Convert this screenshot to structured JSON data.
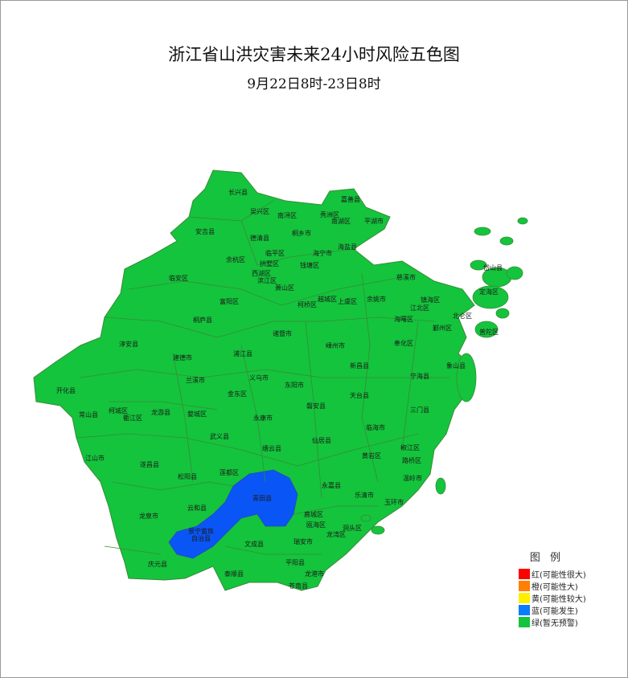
{
  "title": "浙江省山洪灾害未来24小时风险五色图",
  "subtitle": "9月22日8时-23日8时",
  "colors": {
    "green": "#14c43c",
    "blue": "#0a55f5",
    "border": "#3a8a3a"
  },
  "legend": {
    "title": "图 例",
    "items": [
      {
        "label": "红(可能性很大)",
        "color": "#ff0000"
      },
      {
        "label": "橙(可能性大)",
        "color": "#ff8000"
      },
      {
        "label": "黄(可能性较大)",
        "color": "#ffee00"
      },
      {
        "label": "蓝(可能发生)",
        "color": "#0a7cff"
      },
      {
        "label": "绿(暂无预警)",
        "color": "#14c43c"
      }
    ]
  },
  "regions": [
    {
      "name": "长兴县",
      "level": "绿"
    },
    {
      "name": "吴兴区",
      "level": "绿"
    },
    {
      "name": "南浔区",
      "level": "绿"
    },
    {
      "name": "嘉善县",
      "level": "绿"
    },
    {
      "name": "秀洲区",
      "level": "绿"
    },
    {
      "name": "南湖区",
      "level": "绿"
    },
    {
      "name": "平湖市",
      "level": "绿"
    },
    {
      "name": "安吉县",
      "level": "绿"
    },
    {
      "name": "德清县",
      "level": "绿"
    },
    {
      "name": "桐乡市",
      "level": "绿"
    },
    {
      "name": "海盐县",
      "level": "绿"
    },
    {
      "name": "临平区",
      "level": "绿"
    },
    {
      "name": "海宁市",
      "level": "绿"
    },
    {
      "name": "余杭区",
      "level": "绿"
    },
    {
      "name": "拱墅区",
      "level": "绿"
    },
    {
      "name": "钱塘区",
      "level": "绿"
    },
    {
      "name": "西湖区",
      "level": "绿"
    },
    {
      "name": "滨江区",
      "level": "绿"
    },
    {
      "name": "萧山区",
      "level": "绿"
    },
    {
      "name": "临安区",
      "level": "绿"
    },
    {
      "name": "富阳区",
      "level": "绿"
    },
    {
      "name": "柯桥区",
      "level": "绿"
    },
    {
      "name": "越城区",
      "level": "绿"
    },
    {
      "name": "上虞区",
      "level": "绿"
    },
    {
      "name": "余姚市",
      "level": "绿"
    },
    {
      "name": "慈溪市",
      "level": "绿"
    },
    {
      "name": "镇海区",
      "level": "绿"
    },
    {
      "name": "江北区",
      "level": "绿"
    },
    {
      "name": "海曙区",
      "level": "绿"
    },
    {
      "name": "北仑区",
      "level": "绿"
    },
    {
      "name": "鄞州区",
      "level": "绿"
    },
    {
      "name": "定海区",
      "level": "绿"
    },
    {
      "name": "岱山县",
      "level": "绿"
    },
    {
      "name": "普陀区",
      "level": "绿"
    },
    {
      "name": "桐庐县",
      "level": "绿"
    },
    {
      "name": "淳安县",
      "level": "绿"
    },
    {
      "name": "建德市",
      "level": "绿"
    },
    {
      "name": "浦江县",
      "level": "绿"
    },
    {
      "name": "诸暨市",
      "level": "绿"
    },
    {
      "name": "嵊州市",
      "level": "绿"
    },
    {
      "name": "奉化区",
      "level": "绿"
    },
    {
      "name": "新昌县",
      "level": "绿"
    },
    {
      "name": "象山县",
      "level": "绿"
    },
    {
      "name": "宁海县",
      "level": "绿"
    },
    {
      "name": "天台县",
      "level": "绿"
    },
    {
      "name": "三门县",
      "level": "绿"
    },
    {
      "name": "开化县",
      "level": "绿"
    },
    {
      "name": "兰溪市",
      "level": "绿"
    },
    {
      "name": "义乌市",
      "level": "绿"
    },
    {
      "name": "东阳市",
      "level": "绿"
    },
    {
      "name": "金东区",
      "level": "绿"
    },
    {
      "name": "磐安县",
      "level": "绿"
    },
    {
      "name": "常山县",
      "level": "绿"
    },
    {
      "name": "柯城区",
      "level": "绿"
    },
    {
      "name": "衢江区",
      "level": "绿"
    },
    {
      "name": "龙游县",
      "level": "绿"
    },
    {
      "name": "婺城区",
      "level": "绿"
    },
    {
      "name": "永康市",
      "level": "绿"
    },
    {
      "name": "武义县",
      "level": "绿"
    },
    {
      "name": "缙云县",
      "level": "绿"
    },
    {
      "name": "仙居县",
      "level": "绿"
    },
    {
      "name": "临海市",
      "level": "绿"
    },
    {
      "name": "椒江区",
      "level": "绿"
    },
    {
      "name": "黄岩区",
      "level": "绿"
    },
    {
      "name": "路桥区",
      "level": "绿"
    },
    {
      "name": "温岭市",
      "level": "绿"
    },
    {
      "name": "江山市",
      "level": "绿"
    },
    {
      "name": "遂昌县",
      "level": "绿"
    },
    {
      "name": "松阳县",
      "level": "绿"
    },
    {
      "name": "莲都区",
      "level": "绿"
    },
    {
      "name": "永嘉县",
      "level": "绿"
    },
    {
      "name": "乐清市",
      "level": "绿"
    },
    {
      "name": "玉环市",
      "level": "绿"
    },
    {
      "name": "青田县",
      "level": "蓝"
    },
    {
      "name": "云和县",
      "level": "绿"
    },
    {
      "name": "龙泉市",
      "level": "绿"
    },
    {
      "name": "鹿城区",
      "level": "绿"
    },
    {
      "name": "瓯海区",
      "level": "绿"
    },
    {
      "name": "洞头区",
      "level": "绿"
    },
    {
      "name": "龙湾区",
      "level": "绿"
    },
    {
      "name": "景宁畲族",
      "level": "蓝"
    },
    {
      "name": "自治县",
      "level": "蓝"
    },
    {
      "name": "文成县",
      "level": "绿"
    },
    {
      "name": "瑞安市",
      "level": "绿"
    },
    {
      "name": "庆元县",
      "level": "绿"
    },
    {
      "name": "平阳县",
      "level": "绿"
    },
    {
      "name": "泰顺县",
      "level": "绿"
    },
    {
      "name": "龙港市",
      "level": "绿"
    },
    {
      "name": "苍南县",
      "level": "绿"
    }
  ]
}
